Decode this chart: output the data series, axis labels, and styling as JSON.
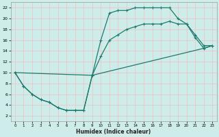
{
  "xlabel": "Humidex (Indice chaleur)",
  "xlim": [
    -0.5,
    23.5
  ],
  "ylim": [
    1,
    23
  ],
  "xticks": [
    0,
    1,
    2,
    3,
    4,
    5,
    6,
    7,
    8,
    9,
    10,
    11,
    12,
    13,
    14,
    15,
    16,
    17,
    18,
    19,
    20,
    21,
    22,
    23
  ],
  "yticks": [
    2,
    4,
    6,
    8,
    10,
    12,
    14,
    16,
    18,
    20,
    22
  ],
  "bg_color": "#ceecea",
  "grid_color": "#e8c8c8",
  "line_color": "#1a7a6e",
  "line1_x": [
    0,
    1,
    2,
    3,
    4,
    5,
    6,
    7,
    8,
    9,
    10,
    11,
    12,
    13,
    14,
    15,
    16,
    17,
    18,
    19,
    20,
    21,
    22,
    23
  ],
  "line1_y": [
    10,
    7.5,
    6,
    5,
    4.5,
    3.5,
    3,
    3,
    3,
    9.5,
    16,
    21,
    21.5,
    21.5,
    22,
    22,
    22,
    22,
    22,
    20,
    19,
    17,
    15,
    15
  ],
  "line2_x": [
    0,
    1,
    2,
    3,
    4,
    5,
    6,
    7,
    8,
    9,
    10,
    11,
    12,
    13,
    14,
    15,
    16,
    17,
    18,
    19,
    20,
    21,
    22,
    23
  ],
  "line2_y": [
    10,
    7.5,
    6,
    5,
    4.5,
    3.5,
    3,
    3,
    3,
    9.5,
    13,
    16,
    17,
    18,
    18.5,
    19,
    19,
    19,
    19.5,
    19,
    19,
    16.5,
    14.5,
    15
  ],
  "line3_x": [
    0,
    9,
    22,
    23
  ],
  "line3_y": [
    10,
    9.5,
    14.5,
    15
  ]
}
